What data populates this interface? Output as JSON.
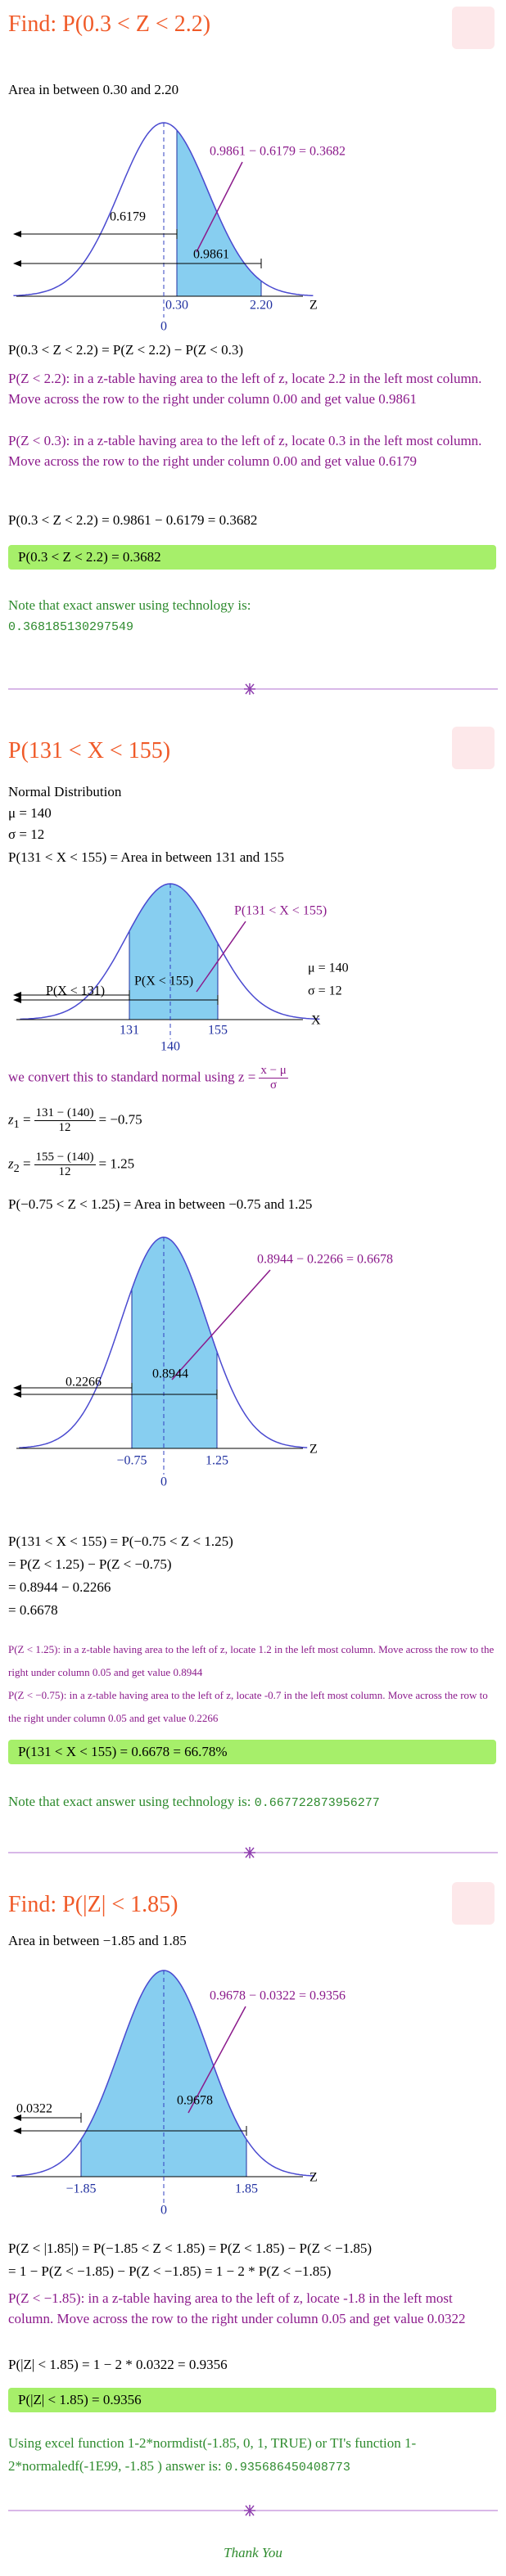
{
  "section1": {
    "heading": "Find:  P(0.3 < Z < 2.2)",
    "intro": "Area in between 0.30 and 2.20",
    "graph": {
      "annotation": "0.9861 − 0.6179 = 0.3682",
      "left_value": "0.6179",
      "right_value": "0.9861",
      "tick_a": "0.30",
      "tick_b": "2.20",
      "center": "0",
      "axis": "Z"
    },
    "eq1": "P(0.3 < Z < 2.2) = P(Z < 2.2) − P(Z < 0.3)",
    "note_a": "P(Z < 2.2): in a z-table having area to the left of z, locate 2.2 in the left most column.  Move across the row to the right under column 0.00 and get value 0.9861",
    "note_b": "P(Z < 0.3): in a z-table having area to the left of z, locate 0.3 in the left most column.  Move across the row to the right under column 0.00 and get value 0.6179",
    "eq2": "P(0.3 < Z < 2.2) = 0.9861 − 0.6179 = 0.3682",
    "result": "P(0.3 < Z < 2.2) = 0.3682",
    "tech_note": "Note that exact answer using technology is:",
    "tech_value": "0.368185130297549"
  },
  "section2": {
    "heading": "P(131 < X < 155)",
    "dist": "Normal Distribution",
    "mu": "μ = 140",
    "sigma": "σ = 12",
    "area": "P(131 < X < 155) = Area in between 131 and 155",
    "graph": {
      "annotation": "P(131 < X < 155)",
      "mu": "μ = 140",
      "sigma": "σ = 12",
      "left_label": "P(X < 131)",
      "right_label": "P(X < 155)",
      "tick_a": "131",
      "tick_b": "155",
      "center": "140",
      "axis": "X"
    },
    "convert_text": "we convert this to standard normal using",
    "convert_formula": {
      "lhs": "z =",
      "num": "x − μ",
      "den": "σ"
    },
    "z1": {
      "var": "z",
      "sub": "1",
      "eq": "=",
      "num": "131 − (140)",
      "den": "12",
      "rhs": "= −0.75"
    },
    "z2": {
      "var": "z",
      "sub": "2",
      "eq": "=",
      "num": "155 − (140)",
      "den": "12",
      "rhs": "= 1.25"
    },
    "area_z": "P(−0.75 < Z < 1.25) = Area in between −0.75 and 1.25",
    "graph2": {
      "annotation": "0.8944 − 0.2266 = 0.6678",
      "left_value": "0.2266",
      "right_value": "0.8944",
      "tick_a": "−0.75",
      "tick_b": "1.25",
      "center": "0",
      "axis": "Z"
    },
    "steps": [
      "P(131 < X < 155) = P(−0.75 < Z < 1.25)",
      "= P(Z < 1.25) − P(Z < −0.75)",
      "= 0.8944 − 0.2266",
      "= 0.6678"
    ],
    "note_a": "P(Z < 1.25): in a z-table having area to the left of z, locate 1.2 in the left most column. Move across the row to the right under column 0.05 and get value 0.8944",
    "note_b": "P(Z < −0.75): in a z-table having area to the left of z, locate -0.7 in the left most column. Move across the row to the right under column 0.05 and get value 0.2266",
    "result": "P(131 < X < 155) = 0.6678 = 66.78%",
    "tech_note": "Note that exact answer using technology is:",
    "tech_value": "0.667722873956277"
  },
  "section3": {
    "heading": "Find:  P(|Z| < 1.85)",
    "intro": "Area in between −1.85 and 1.85",
    "graph": {
      "annotation": "0.9678 − 0.0322 = 0.9356",
      "left_value": "0.0322",
      "right_value": "0.9678",
      "tick_a": "−1.85",
      "tick_b": "1.85",
      "center": "0",
      "axis": "Z"
    },
    "steps": [
      "P(Z < |1.85|) = P(−1.85 < Z < 1.85) = P(Z < 1.85) − P(Z < −1.85)",
      "= 1 − P(Z < −1.85) − P(Z < −1.85) = 1 − 2 * P(Z < −1.85)"
    ],
    "note": "P(Z < −1.85): in a z-table having area to the left of z, locate -1.8 in the left most column.  Move across the row to the right under column 0.05 and get value 0.0322",
    "eq": "P(|Z| < 1.85) = 1 − 2 * 0.0322 = 0.9356",
    "result": "P(|Z| < 1.85) = 0.9356",
    "excel_text": "Using excel function 1-2*normdist(-1.85, 0, 1, TRUE) or TI's function 1-2*normaledf(-1E99, -1.85 ) answer is:",
    "excel_value": "0.935686450408773"
  },
  "footer": {
    "thank_you": "Thank You"
  }
}
